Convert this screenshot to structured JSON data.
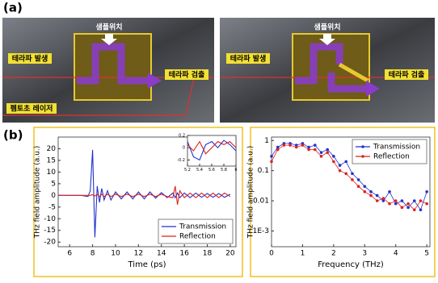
{
  "labels": {
    "a": "(a)",
    "b": "(b)"
  },
  "photos": [
    {
      "sample": "샘플위치",
      "generation": "테라파 발생",
      "detection": "테라파 검출",
      "laser": "펨토초 레이저"
    },
    {
      "sample": "샘플위치",
      "generation": "테라파 발생",
      "detection": "테라파 검출"
    }
  ],
  "chart_data": [
    {
      "type": "line",
      "xlabel": "Time (ps)",
      "ylabel": "THz field amplitude (a.u.)",
      "x": [
        5,
        6,
        7,
        7.6,
        7.8,
        8.0,
        8.2,
        8.4,
        8.6,
        8.8,
        9.0,
        9.3,
        9.6,
        10,
        10.5,
        11,
        11.5,
        12,
        12.5,
        13,
        13.5,
        14,
        14.5,
        15,
        15.2,
        15.4,
        15.6,
        16,
        16.5,
        17,
        17.5,
        18,
        18.5,
        19,
        19.5,
        20
      ],
      "series": [
        {
          "name": "Transmission",
          "color": "#2233cc",
          "values": [
            0,
            0,
            0,
            -0.5,
            2,
            19.5,
            -18,
            4,
            -3,
            3,
            -2,
            2,
            -2,
            1.5,
            -1.5,
            1.5,
            -1.5,
            1.5,
            -1.5,
            1.5,
            -1.2,
            1.2,
            -1,
            1,
            -1,
            1,
            -1,
            1,
            -1,
            1,
            -0.8,
            0.8,
            -0.8,
            0.8,
            -0.8,
            0.5
          ]
        },
        {
          "name": "Reflection",
          "color": "#dd2222",
          "values": [
            0,
            0,
            0,
            0,
            0,
            0.3,
            -0.3,
            0.5,
            -0.5,
            0.5,
            -0.5,
            0.5,
            -0.5,
            0.5,
            -0.5,
            0.5,
            -0.5,
            0.5,
            -0.5,
            0.5,
            -0.5,
            0.5,
            -0.5,
            -1,
            4,
            -4,
            2,
            -1,
            1,
            -1,
            1,
            -1,
            1,
            -1,
            1,
            -0.5
          ]
        }
      ],
      "xlim": [
        5,
        20.5
      ],
      "xticks": [
        6,
        8,
        10,
        12,
        14,
        16,
        18,
        20
      ],
      "ylim": [
        -22,
        25
      ],
      "yticks": [
        -20,
        -15,
        -10,
        -5,
        0,
        5,
        10,
        15,
        20
      ],
      "legend": "lower right"
    },
    {
      "type": "line",
      "x": [
        5.2,
        5.3,
        5.4,
        5.5,
        5.6,
        5.7,
        5.8,
        5.9,
        6.0
      ],
      "series": [
        {
          "color": "#2233cc",
          "values": [
            0.1,
            -0.15,
            -0.2,
            0.05,
            0.1,
            0.0,
            0.12,
            0.05,
            -0.05
          ]
        },
        {
          "color": "#dd2222",
          "values": [
            0.05,
            -0.05,
            0.1,
            -0.1,
            0.0,
            0.1,
            0.05,
            0.1,
            0.0
          ]
        }
      ],
      "xlim": [
        5.2,
        6.0
      ],
      "xticks": [
        5.2,
        5.4,
        5.6,
        5.8,
        6.0
      ],
      "ylim": [
        -0.3,
        0.2
      ],
      "yticks": [
        -0.2,
        0,
        0.2
      ]
    },
    {
      "type": "line",
      "markers": true,
      "log_y": true,
      "xlabel": "Frequency (THz)",
      "ylabel": "THz field amplitude (a.u.)",
      "x": [
        0,
        0.2,
        0.4,
        0.6,
        0.8,
        1.0,
        1.2,
        1.4,
        1.6,
        1.8,
        2.0,
        2.2,
        2.4,
        2.6,
        2.8,
        3.0,
        3.2,
        3.4,
        3.6,
        3.8,
        4.0,
        4.2,
        4.4,
        4.6,
        4.8,
        5.0
      ],
      "series": [
        {
          "name": "Transmission",
          "color": "#2233cc",
          "values": [
            0.3,
            0.6,
            0.8,
            0.8,
            0.7,
            0.8,
            0.6,
            0.7,
            0.4,
            0.5,
            0.3,
            0.15,
            0.2,
            0.08,
            0.05,
            0.03,
            0.02,
            0.015,
            0.01,
            0.02,
            0.008,
            0.01,
            0.006,
            0.01,
            0.005,
            0.02
          ]
        },
        {
          "name": "Reflection",
          "color": "#dd2222",
          "values": [
            0.2,
            0.5,
            0.7,
            0.7,
            0.6,
            0.7,
            0.5,
            0.5,
            0.3,
            0.4,
            0.2,
            0.1,
            0.08,
            0.05,
            0.03,
            0.02,
            0.015,
            0.01,
            0.012,
            0.008,
            0.01,
            0.006,
            0.008,
            0.005,
            0.01,
            0.008
          ]
        }
      ],
      "xlim": [
        0,
        5.1
      ],
      "xticks": [
        0,
        1,
        2,
        3,
        4,
        5
      ],
      "ylim": [
        0.0003,
        1.3
      ],
      "yticks": [
        {
          "value": 0.001,
          "label": "1E-3"
        },
        0.01,
        0.1,
        1
      ],
      "legend": "upper right"
    }
  ]
}
